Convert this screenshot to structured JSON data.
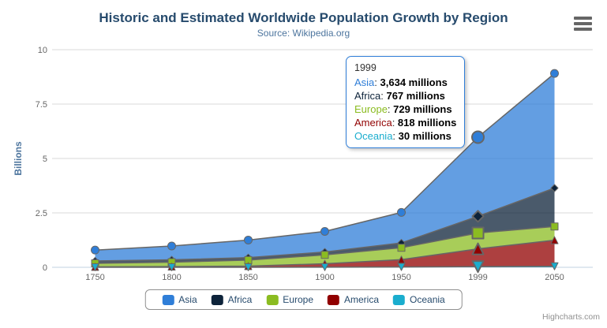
{
  "chart": {
    "credits": "Highcharts.com",
    "export_icon": "hamburger-icon"
  },
  "chart_data": {
    "type": "area",
    "stacking": "normal",
    "title": "Historic and Estimated Worldwide Population Growth by Region",
    "subtitle": "Source: Wikipedia.org",
    "xlabel": "",
    "ylabel": "Billions",
    "values_unit": "millions",
    "categories": [
      "1750",
      "1800",
      "1850",
      "1900",
      "1950",
      "1999",
      "2050"
    ],
    "series": [
      {
        "name": "Asia",
        "color": "#2f7ed8",
        "marker": "circle",
        "values": [
          502,
          635,
          809,
          947,
          1402,
          3634,
          5268
        ]
      },
      {
        "name": "Africa",
        "color": "#0d233a",
        "marker": "diamond",
        "values": [
          106,
          107,
          111,
          133,
          221,
          767,
          1766
        ]
      },
      {
        "name": "Europe",
        "color": "#8bbc21",
        "marker": "square",
        "values": [
          163,
          203,
          276,
          408,
          547,
          729,
          628
        ]
      },
      {
        "name": "America",
        "color": "#910000",
        "marker": "triangle",
        "values": [
          18,
          31,
          54,
          156,
          339,
          818,
          1201
        ]
      },
      {
        "name": "Oceania",
        "color": "#1aadce",
        "marker": "triangle-down",
        "values": [
          2,
          2,
          2,
          6,
          13,
          30,
          46
        ]
      }
    ],
    "stack_order": "first-series-on-top",
    "ylim": [
      0,
      10
    ],
    "yticks": [
      "0",
      "2.5",
      "5",
      "7.5",
      "10"
    ],
    "grid": true,
    "legend_position": "bottom-center",
    "fill_opacity": 0.75,
    "line_color": "#666666",
    "grid_color": "#d8d8d8",
    "axis_line_color": "#c0d0e0",
    "axis_label_color": "#666666"
  },
  "tooltip": {
    "header": "1999",
    "value_suffix": "millions",
    "rows": [
      {
        "name": "Asia",
        "color": "#2f7ed8",
        "value": "3,634"
      },
      {
        "name": "Africa",
        "color": "#0d233a",
        "value": "767"
      },
      {
        "name": "Europe",
        "color": "#8bbc21",
        "value": "729"
      },
      {
        "name": "America",
        "color": "#910000",
        "value": "818"
      },
      {
        "name": "Oceania",
        "color": "#1aadce",
        "value": "30"
      }
    ]
  }
}
